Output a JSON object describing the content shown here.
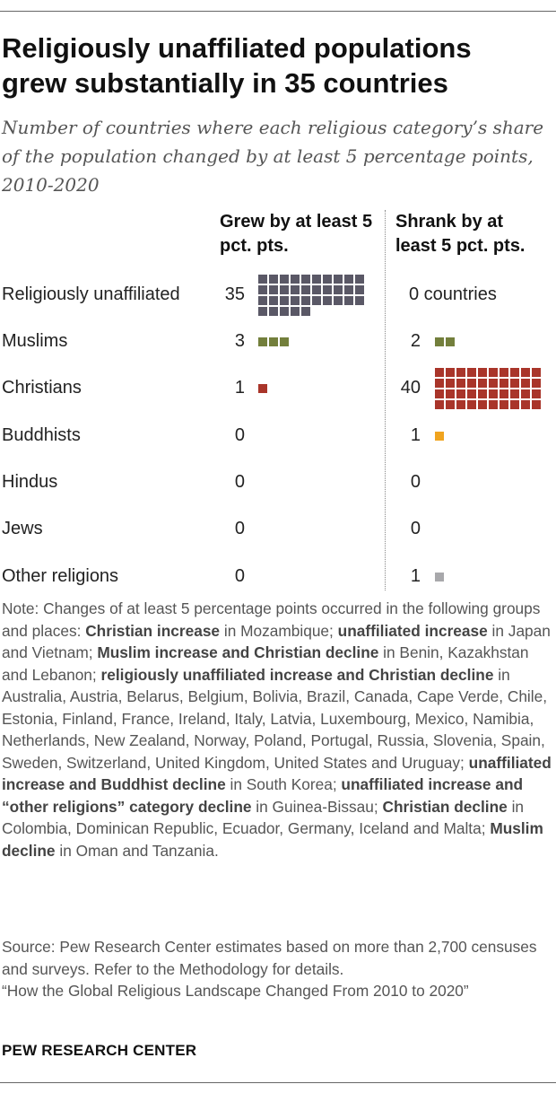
{
  "title": "Religiously unaffiliated populations grew substantially in 35 countries",
  "subtitle": "Number of countries where each religious category’s share of the population changed by at least 5 percentage points, 2010-2020",
  "colors": {
    "unaffiliated": "#5a5866",
    "muslims": "#737f3c",
    "christians": "#a9352a",
    "buddhists": "#f0a41f",
    "other": "#a8a8ab"
  },
  "chart_data": {
    "type": "waffle",
    "column_headers": {
      "grew": "Grew by at least 5 pct. pts.",
      "shrank": "Shrank by at least 5 pct. pts."
    },
    "rows": [
      {
        "label": "Religiously unaffiliated",
        "grew": 35,
        "grew_text": "35",
        "shrank": 0,
        "shrank_text": "0 countries",
        "color": "#5a5866"
      },
      {
        "label": "Muslims",
        "grew": 3,
        "grew_text": "3",
        "shrank": 2,
        "shrank_text": "2",
        "color": "#737f3c"
      },
      {
        "label": "Christians",
        "grew": 1,
        "grew_text": "1",
        "shrank": 40,
        "shrank_text": "40",
        "color": "#a9352a"
      },
      {
        "label": "Buddhists",
        "grew": 0,
        "grew_text": "0",
        "shrank": 1,
        "shrank_text": "1",
        "color": "#f0a41f"
      },
      {
        "label": "Hindus",
        "grew": 0,
        "grew_text": "0",
        "shrank": 0,
        "shrank_text": "0",
        "color": ""
      },
      {
        "label": "Jews",
        "grew": 0,
        "grew_text": "0",
        "shrank": 0,
        "shrank_text": "0",
        "color": ""
      },
      {
        "label": "Other religions",
        "grew": 0,
        "grew_text": "0",
        "shrank": 1,
        "shrank_text": "1",
        "color": "#a8a8ab"
      }
    ]
  },
  "note": [
    {
      "t": "Note: Changes of at least 5 percentage points occurred in the following groups and places: "
    },
    {
      "t": "Christian increase",
      "b": true
    },
    {
      "t": " in Mozambique; "
    },
    {
      "t": "unaffiliated increase",
      "b": true
    },
    {
      "t": " in Japan and Vietnam; "
    },
    {
      "t": "Muslim increase and Christian decline",
      "b": true
    },
    {
      "t": " in Benin, Kazakhstan and Lebanon; "
    },
    {
      "t": "religiously unaffiliated increase and Christian decline",
      "b": true
    },
    {
      "t": " in Australia, Austria, Belarus, Belgium, Bolivia, Brazil, Canada, Cape Verde, Chile, Estonia, Finland, France, Ireland, Italy, Latvia, Luxembourg, Mexico, Namibia, Netherlands, New Zealand, Norway, Poland, Portugal, Russia, Slovenia, Spain, Sweden, Switzerland, United Kingdom, United States and Uruguay; "
    },
    {
      "t": "unaffiliated increase and Buddhist decline",
      "b": true
    },
    {
      "t": " in South Korea; "
    },
    {
      "t": "unaffiliated increase and “other religions” category decline",
      "b": true
    },
    {
      "t": " in Guinea-Bissau; "
    },
    {
      "t": "Christian decline",
      "b": true
    },
    {
      "t": " in Colombia, Dominican Republic, Ecuador, Germany, Iceland and Malta; "
    },
    {
      "t": "Muslim decline",
      "b": true
    },
    {
      "t": " in Oman and Tanzania."
    }
  ],
  "source": "Source: Pew Research Center estimates based on more than 2,700 censuses and surveys. Refer to the Methodology for details.",
  "report": "“How the Global Religious Landscape Changed From 2010 to 2020”",
  "brand": "PEW RESEARCH CENTER"
}
